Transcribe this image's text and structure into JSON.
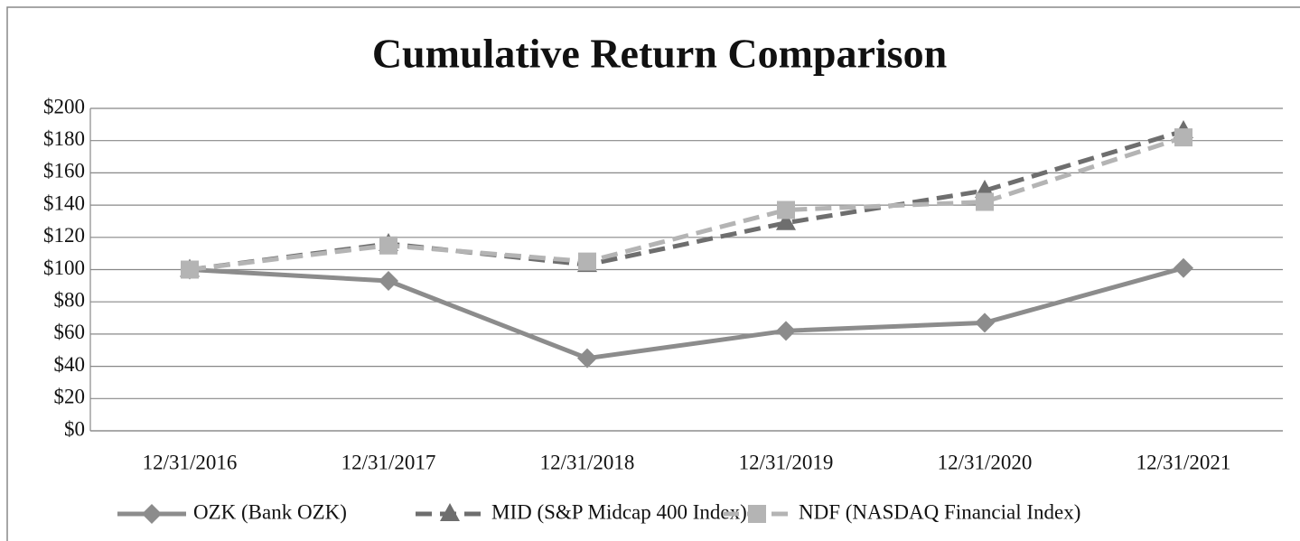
{
  "chart_data": {
    "type": "line",
    "title": "Cumulative Return Comparison",
    "categories": [
      "12/31/2016",
      "12/31/2017",
      "12/31/2018",
      "12/31/2019",
      "12/31/2020",
      "12/31/2021"
    ],
    "series": [
      {
        "name": "OZK (Bank OZK)",
        "color": "#8c8c8c",
        "dash": "solid",
        "marker": "diamond",
        "values": [
          100,
          93,
          45,
          62,
          67,
          101
        ]
      },
      {
        "name": "MID (S&P Midcap 400 Index)",
        "color": "#6e6e6e",
        "dash": "dashed",
        "marker": "triangle",
        "values": [
          100,
          116,
          103,
          129,
          149,
          186
        ]
      },
      {
        "name": "NDF (NASDAQ Financial Index)",
        "color": "#b4b4b4",
        "dash": "dashed",
        "marker": "square",
        "values": [
          100,
          115,
          105,
          137,
          142,
          182
        ]
      }
    ],
    "ylim": [
      0,
      200
    ],
    "yticks": [
      {
        "value": 0,
        "label": "$0"
      },
      {
        "value": 20,
        "label": "$20"
      },
      {
        "value": 40,
        "label": "$40"
      },
      {
        "value": 60,
        "label": "$60"
      },
      {
        "value": 80,
        "label": "$80"
      },
      {
        "value": 100,
        "label": "$100"
      },
      {
        "value": 120,
        "label": "$120"
      },
      {
        "value": 140,
        "label": "$140"
      },
      {
        "value": 160,
        "label": "$160"
      },
      {
        "value": 180,
        "label": "$180"
      },
      {
        "value": 200,
        "label": "$200"
      }
    ],
    "grid": true,
    "legend": "bottom"
  }
}
